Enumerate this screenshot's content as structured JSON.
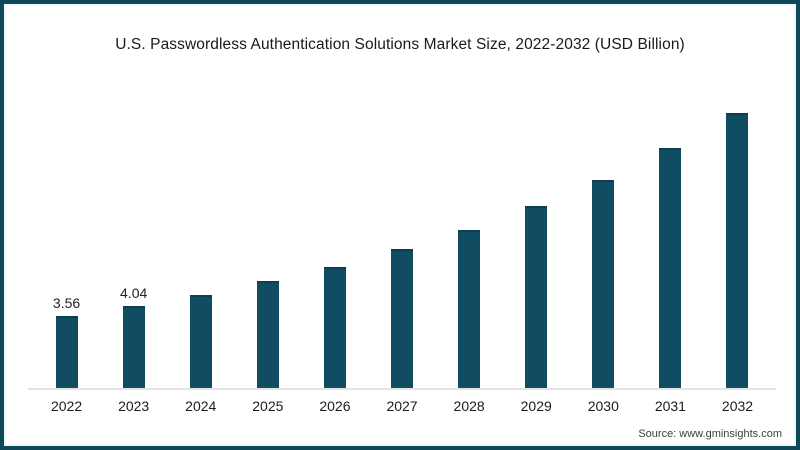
{
  "page": {
    "background_color": "#ffffff",
    "frame_border_color": "#0e465a"
  },
  "chart_data": {
    "type": "bar",
    "title": "U.S. Passwordless Authentication Solutions Market Size, 2022-2032 (USD Billion)",
    "categories": [
      "2022",
      "2023",
      "2024",
      "2025",
      "2026",
      "2027",
      "2028",
      "2029",
      "2030",
      "2031",
      "2032"
    ],
    "values": [
      3.56,
      4.04,
      4.6,
      5.3,
      6.0,
      6.9,
      7.8,
      9.0,
      10.3,
      11.9,
      13.6
    ],
    "value_labels": [
      "3.56",
      "4.04",
      "",
      "",
      "",
      "",
      "",
      "",
      "",
      "",
      ""
    ],
    "xlabel": "",
    "ylabel": "",
    "ylim": [
      0,
      14
    ],
    "grid": false,
    "legend": false,
    "bar_color": "#104d63",
    "bar_top_edge_color": "#0b3e50",
    "axis_line_color": "#e3e3e3"
  },
  "source": {
    "label": "Source: www.gminsights.com"
  }
}
